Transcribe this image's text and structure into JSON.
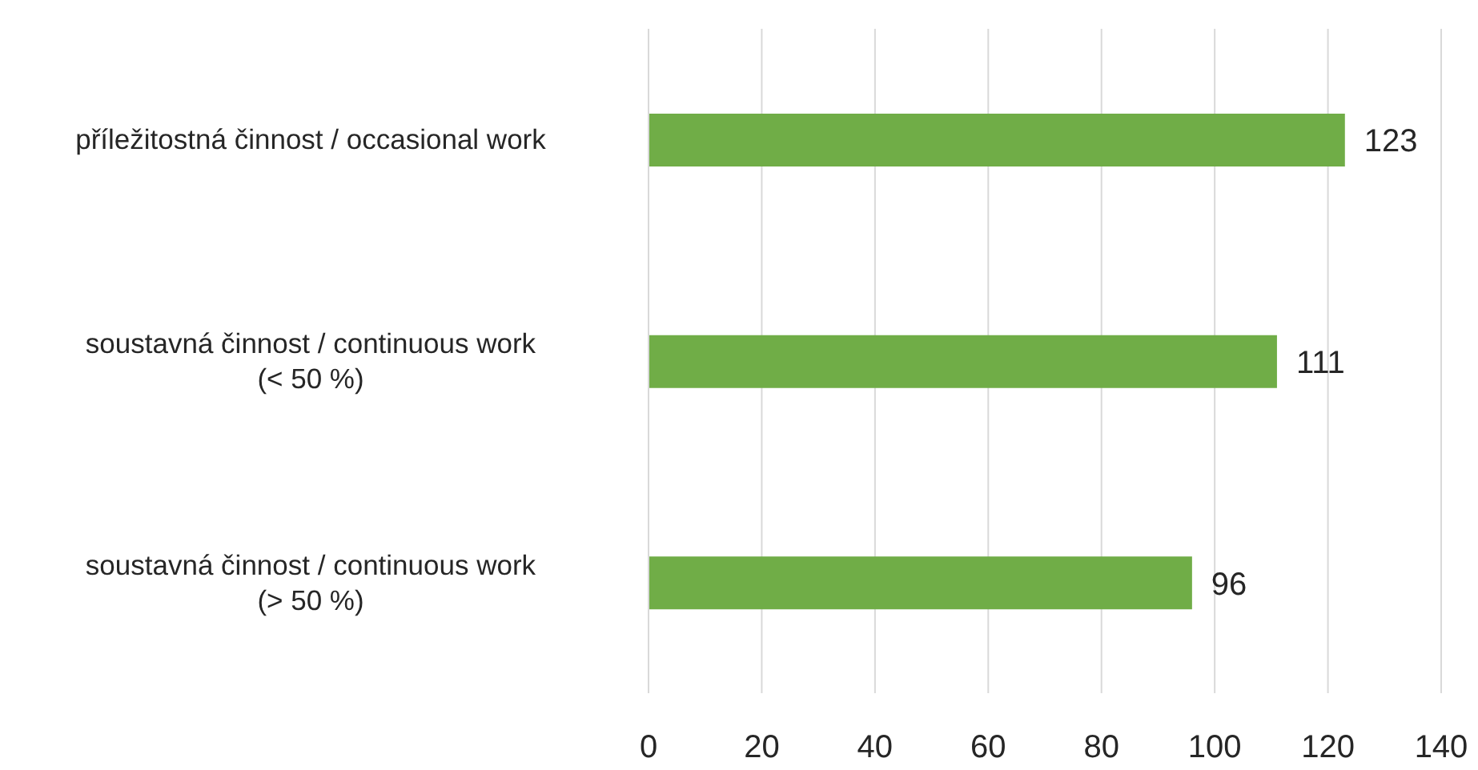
{
  "chart_data": {
    "type": "bar",
    "orientation": "horizontal",
    "categories": [
      "příležitostná činnost / occasional work",
      "soustavná činnost / continuous work (< 50 %)",
      "soustavná činnost / continuous work (> 50 %)"
    ],
    "values": [
      123,
      111,
      96
    ],
    "color": "#70ad47",
    "xlim": [
      0,
      140
    ],
    "xticks": [
      0,
      20,
      40,
      60,
      80,
      100,
      120,
      140
    ],
    "grid": "x",
    "data_labels": true
  }
}
